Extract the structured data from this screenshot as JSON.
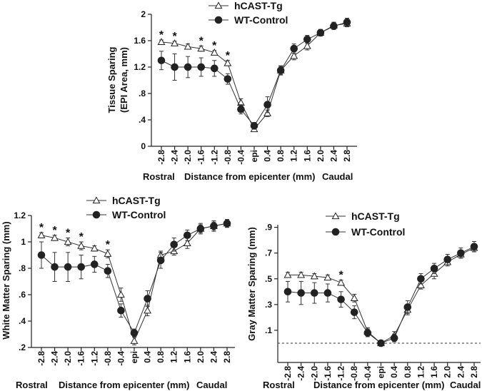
{
  "chart_data": [
    {
      "type": "line",
      "id": "tissue",
      "ylabel_lines": [
        "Tissue Sparing",
        "(EPI Area, mm)"
      ],
      "xlabel": "Distance from epicenter (mm)",
      "xlabel_left": "Rostral",
      "xlabel_right": "Caudal",
      "categories": [
        "-2.8",
        "-2.4",
        "-2.0",
        "-1.6",
        "-1.2",
        "-0.8",
        "-0.4",
        "epi",
        "0.4",
        "0.8",
        "1.2",
        "1.6",
        "2.0",
        "2.4",
        "2.8"
      ],
      "y_ticks": [
        "0",
        ".4",
        ".8",
        "1.2",
        "1.6",
        "2"
      ],
      "y_tick_values": [
        0,
        0.4,
        0.8,
        1.2,
        1.6,
        2.0
      ],
      "ylim": [
        0,
        2.0
      ],
      "legend": [
        "hCAST-Tg",
        "WT-Control"
      ],
      "significance_marker": "*",
      "significant_categories": [
        "-2.8",
        "-2.4",
        "-1.6",
        "-1.2",
        "-0.8"
      ],
      "series": [
        {
          "name": "hCAST-Tg",
          "marker": "open-triangle",
          "values": [
            1.58,
            1.56,
            1.51,
            1.48,
            1.42,
            1.26,
            0.66,
            0.26,
            0.5,
            1.15,
            1.37,
            1.52,
            1.72,
            1.83,
            1.86
          ],
          "errors": [
            0.03,
            0.03,
            0.04,
            0.04,
            0.03,
            0.04,
            0.06,
            0.03,
            0.05,
            0.06,
            0.06,
            0.06,
            0.05,
            0.05,
            0.05
          ]
        },
        {
          "name": "WT-Control",
          "marker": "filled-circle",
          "values": [
            1.3,
            1.2,
            1.2,
            1.2,
            1.18,
            1.02,
            0.56,
            0.31,
            0.63,
            1.15,
            1.48,
            1.62,
            1.72,
            1.82,
            1.88
          ],
          "errors": [
            0.14,
            0.2,
            0.16,
            0.14,
            0.12,
            0.08,
            0.07,
            0.05,
            0.12,
            0.07,
            0.07,
            0.06,
            0.05,
            0.05,
            0.06
          ]
        }
      ]
    },
    {
      "type": "line",
      "id": "white",
      "ylabel_lines": [
        "White Matter Sparing (mm)"
      ],
      "xlabel": "Distance from epicenter (mm)",
      "xlabel_left": "Rostral",
      "xlabel_right": "Caudal",
      "categories": [
        "-2.8",
        "-2.4",
        "-2.0",
        "-1.6",
        "-1.2",
        "-0.8",
        "-0.4",
        "epi",
        "0.4",
        "0.8",
        "1.2",
        "1.6",
        "2.0",
        "2.4",
        "2.8"
      ],
      "y_ticks": [
        ".2",
        ".4",
        ".6",
        ".8",
        "1",
        "1.2"
      ],
      "y_tick_values": [
        0.2,
        0.4,
        0.6,
        0.8,
        1.0,
        1.2
      ],
      "ylim": [
        0.2,
        1.2
      ],
      "legend": [
        "hCAST-Tg",
        "WT-Control"
      ],
      "significance_marker": "*",
      "significant_categories": [
        "-2.8",
        "-2.4",
        "-2.0",
        "-1.6",
        "-0.8"
      ],
      "series": [
        {
          "name": "hCAST-Tg",
          "marker": "open-triangle",
          "values": [
            1.05,
            1.03,
            1.0,
            0.97,
            0.95,
            0.91,
            0.6,
            0.25,
            0.48,
            0.9,
            0.93,
            0.99,
            1.1,
            1.12,
            1.14
          ],
          "errors": [
            0.02,
            0.02,
            0.03,
            0.03,
            0.02,
            0.03,
            0.05,
            0.03,
            0.04,
            0.03,
            0.03,
            0.04,
            0.03,
            0.03,
            0.03
          ]
        },
        {
          "name": "WT-Control",
          "marker": "filled-circle",
          "values": [
            0.9,
            0.81,
            0.81,
            0.81,
            0.83,
            0.78,
            0.48,
            0.31,
            0.57,
            0.86,
            0.98,
            1.05,
            1.1,
            1.12,
            1.14
          ],
          "errors": [
            0.1,
            0.11,
            0.11,
            0.09,
            0.06,
            0.05,
            0.05,
            0.03,
            0.06,
            0.06,
            0.05,
            0.04,
            0.04,
            0.04,
            0.03
          ]
        }
      ]
    },
    {
      "type": "line",
      "id": "gray",
      "ylabel_lines": [
        "Gray Matter Sparing (mm)"
      ],
      "xlabel": "Distance from epicenter (mm)",
      "xlabel_left": "Rostral",
      "xlabel_right": "Caudal",
      "categories": [
        "-2.8",
        "-2.4",
        "-2.0",
        "-1.6",
        "-1.2",
        "-0.8",
        "-0.4",
        "epi",
        "0.4",
        "0.8",
        "1.2",
        "1.6",
        "2.0",
        "2.4",
        "2.8"
      ],
      "y_ticks": [
        ".1",
        ".3",
        ".5",
        ".7",
        ".9"
      ],
      "y_tick_values": [
        0.1,
        0.3,
        0.5,
        0.7,
        0.9
      ],
      "ylim": [
        -0.15,
        0.92
      ],
      "zero_line": 0,
      "legend": [
        "hCAST-Tg",
        "WT-Control"
      ],
      "significance_marker": "*",
      "significant_categories": [
        "-1.2"
      ],
      "series": [
        {
          "name": "hCAST-Tg",
          "marker": "open-triangle",
          "values": [
            0.53,
            0.53,
            0.52,
            0.51,
            0.47,
            0.35,
            0.09,
            0.0,
            0.06,
            0.26,
            0.45,
            0.54,
            0.63,
            0.69,
            0.74
          ],
          "errors": [
            0.02,
            0.02,
            0.02,
            0.02,
            0.02,
            0.03,
            0.03,
            0.01,
            0.03,
            0.04,
            0.03,
            0.04,
            0.03,
            0.03,
            0.03
          ]
        },
        {
          "name": "WT-Control",
          "marker": "filled-circle",
          "values": [
            0.4,
            0.39,
            0.39,
            0.39,
            0.34,
            0.24,
            0.08,
            0.0,
            0.04,
            0.28,
            0.5,
            0.58,
            0.65,
            0.7,
            0.75
          ],
          "errors": [
            0.08,
            0.09,
            0.08,
            0.07,
            0.06,
            0.05,
            0.03,
            0.01,
            0.03,
            0.05,
            0.04,
            0.04,
            0.04,
            0.04,
            0.04
          ]
        }
      ]
    }
  ]
}
